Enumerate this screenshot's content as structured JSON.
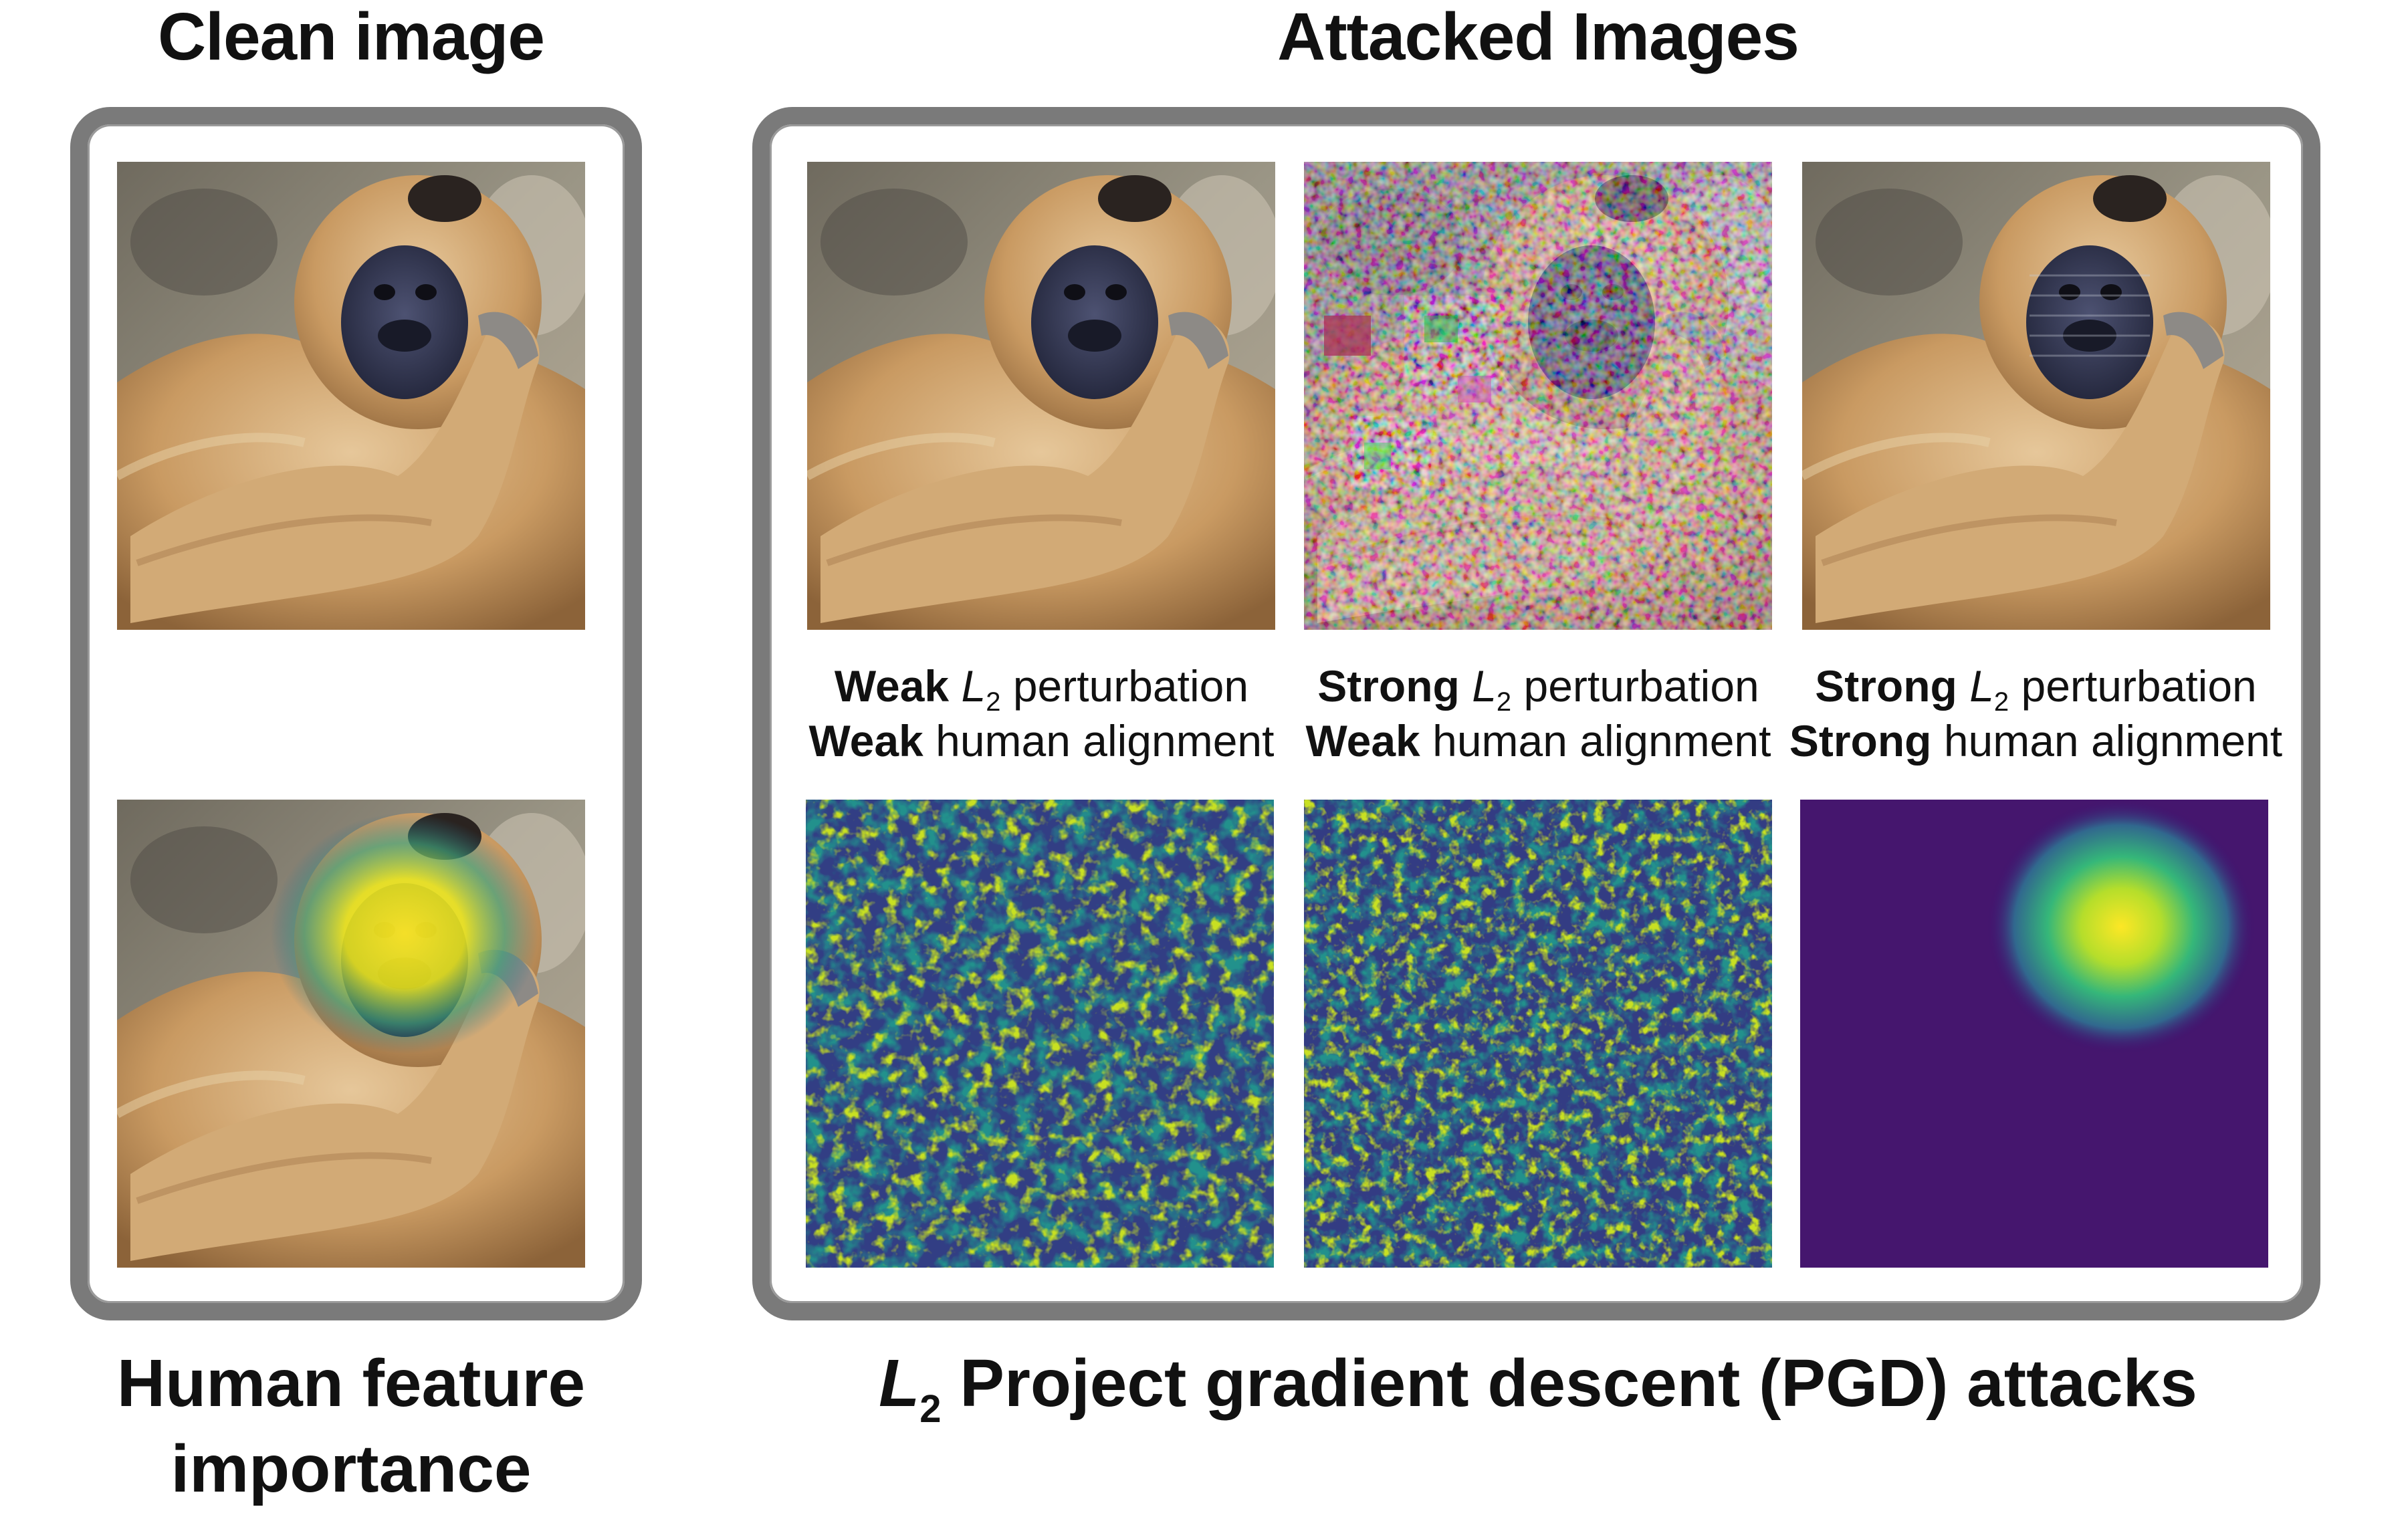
{
  "headings": {
    "clean": "Clean image",
    "attacked": "Attacked Images",
    "human_line1": "Human feature",
    "human_line2": "importance",
    "pgd_l": "L",
    "pgd_sub": "2",
    "pgd_text": "Project gradient descent (PGD) attacks"
  },
  "captions": [
    {
      "pert_strength": "Weak",
      "l_symbol": "L",
      "l_sub": "2",
      "pert_text": "perturbation",
      "align_strength": "Weak",
      "align_text": "human alignment"
    },
    {
      "pert_strength": "Strong",
      "l_symbol": "L",
      "l_sub": "2",
      "pert_text": "perturbation",
      "align_strength": "Weak",
      "align_text": "human alignment"
    },
    {
      "pert_strength": "Strong",
      "l_symbol": "L",
      "l_sub": "2",
      "pert_text": "perturbation",
      "align_strength": "Strong",
      "align_text": "human alignment"
    }
  ],
  "colors": {
    "panel_border": "#7a7a7a",
    "heatmap_low": "#3b0f6f",
    "heatmap_mid": "#21918c",
    "heatmap_high": "#fde725"
  }
}
